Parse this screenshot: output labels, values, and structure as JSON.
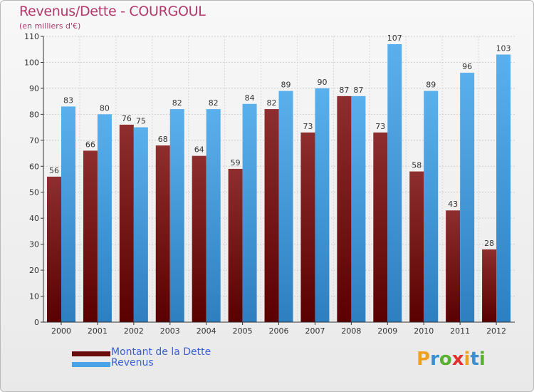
{
  "header": {
    "title": "Revenus/Dette - COURGOUL",
    "subtitle": "(en milliers d'€)"
  },
  "legend": {
    "debt_label": "Montant de la Dette",
    "revenue_label": "Revenus"
  },
  "logo": {
    "letters": [
      "P",
      "r",
      "o",
      "x",
      "i",
      "t",
      "i"
    ],
    "colors": [
      "#f0a020",
      "#3a8fd0",
      "#5ab030",
      "#e03030",
      "#f0a020",
      "#3a8fd0",
      "#5ab030"
    ]
  },
  "colors": {
    "debt": "#7a1a1a",
    "revenue": "#4aa3e6"
  },
  "chart_data": {
    "type": "bar",
    "title": "Revenus/Dette - COURGOUL",
    "ylabel": "(en milliers d'€)",
    "xlabel": "",
    "categories": [
      "2000",
      "2001",
      "2002",
      "2003",
      "2004",
      "2005",
      "2006",
      "2007",
      "2008",
      "2009",
      "2010",
      "2011",
      "2012"
    ],
    "series": [
      {
        "name": "Montant de la Dette",
        "values": [
          56,
          66,
          76,
          68,
          64,
          59,
          82,
          73,
          87,
          73,
          58,
          43,
          28
        ]
      },
      {
        "name": "Revenus",
        "values": [
          83,
          80,
          75,
          82,
          82,
          84,
          89,
          90,
          87,
          107,
          89,
          96,
          103
        ]
      }
    ],
    "ylim": [
      0,
      110
    ],
    "yticks": [
      "0",
      "10",
      "20",
      "30",
      "40",
      "50",
      "60",
      "70",
      "80",
      "90",
      "100",
      "110"
    ],
    "grid": true,
    "legend_position": "bottom-left"
  }
}
